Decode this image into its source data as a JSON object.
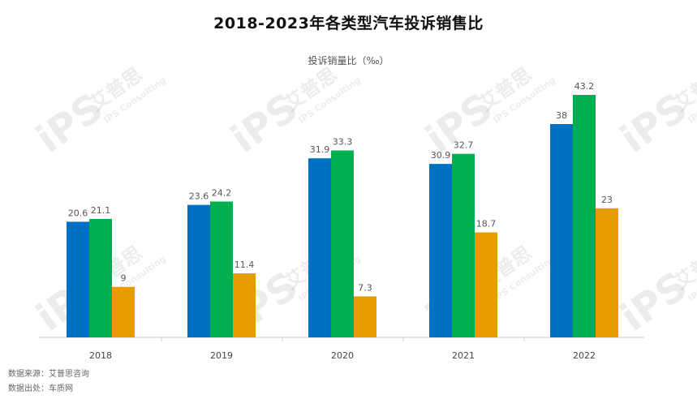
{
  "title": "2018-2023年各类型汽车投诉销售比",
  "subtitle": "投诉销量比（‰）",
  "sources": [
    "数据来源：艾普思咨询",
    "数据出处：车质网"
  ],
  "watermark": {
    "brand": "艾普思",
    "text": "IPS Consulting",
    "logo": "iPS"
  },
  "colors": {
    "blue": "#0070C0",
    "green": "#00B050",
    "orange": "#E69B00",
    "axis": "#cccccc",
    "label": "#555555"
  },
  "chart_data": {
    "type": "bar",
    "categories": [
      "2018",
      "2019",
      "2020",
      "2021",
      "2022"
    ],
    "series": [
      {
        "values": [
          20.6,
          23.6,
          31.9,
          30.9,
          38
        ],
        "color": "#0070C0"
      },
      {
        "values": [
          21.1,
          24.2,
          33.3,
          32.7,
          43.2
        ],
        "color": "#00B050"
      },
      {
        "values": [
          9,
          11.4,
          7.3,
          18.7,
          23
        ],
        "color": "#E69B00"
      }
    ],
    "ylim": [
      0,
      45
    ],
    "grid": false,
    "legend": "none"
  }
}
